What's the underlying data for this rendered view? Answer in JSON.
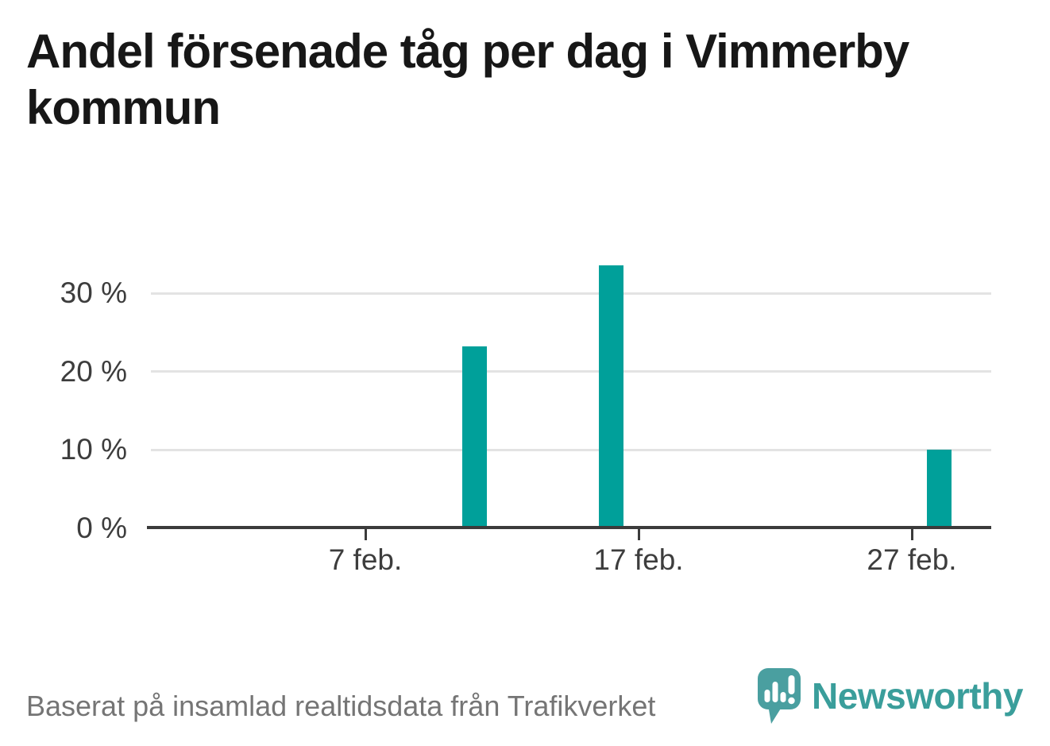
{
  "title": "Andel försenade tåg per dag i Vimmerby kommun",
  "footer": {
    "source_text": "Baserat på insamlad realtidsdata från Trafikverket"
  },
  "branding": {
    "wordmark": "Newsworthy",
    "logo_color": "#4a9fa0",
    "wordmark_color": "#3a9e9b"
  },
  "chart_data": {
    "type": "bar",
    "title": "Andel försenade tåg per dag i Vimmerby kommun",
    "xlabel": "",
    "ylabel": "",
    "unit": "%",
    "grid": true,
    "legend": false,
    "ylim": [
      0,
      35
    ],
    "bar_color": "#00a09a",
    "axis_color": "#3b3b3b",
    "gridline_color": "#e3e3e3",
    "y_ticks": [
      {
        "value": 0,
        "label": "0 %"
      },
      {
        "value": 10,
        "label": "10 %"
      },
      {
        "value": 20,
        "label": "20 %"
      },
      {
        "value": 30,
        "label": "30 %"
      }
    ],
    "x_ticks": [
      {
        "day": 7,
        "label": "7 feb."
      },
      {
        "day": 17,
        "label": "17 feb."
      },
      {
        "day": 27,
        "label": "27 feb."
      }
    ],
    "bars": [
      {
        "day": 11,
        "label": "11 feb.",
        "value": 23.2
      },
      {
        "day": 16,
        "label": "16 feb.",
        "value": 33.6
      },
      {
        "day": 28,
        "label": "28 feb.",
        "value": 10.0
      }
    ]
  }
}
